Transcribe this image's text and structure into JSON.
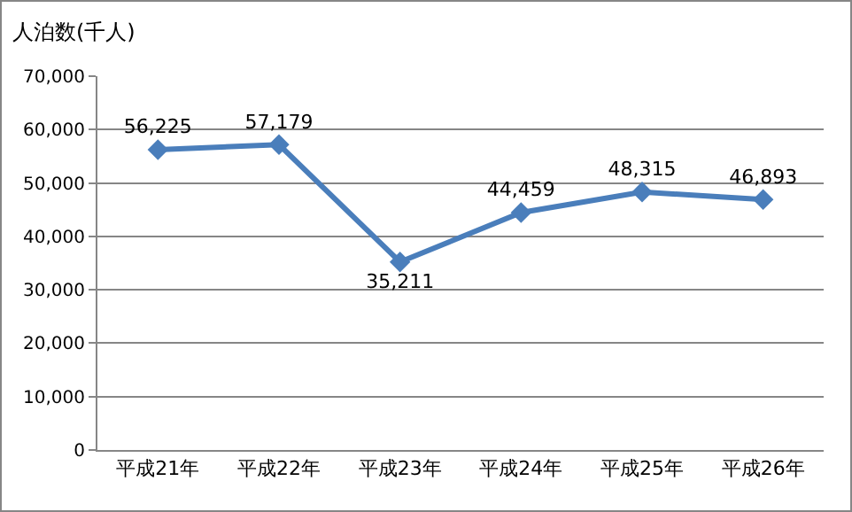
{
  "chart_data": {
    "type": "line",
    "ylabel": "人泊数(千人)",
    "categories": [
      "平成21年",
      "平成22年",
      "平成23年",
      "平成24年",
      "平成25年",
      "平成26年"
    ],
    "series": [
      {
        "color": "#4a7ebb",
        "values": [
          56225,
          57179,
          35211,
          44459,
          48315,
          46893
        ],
        "value_labels": [
          "56,225",
          "57,179",
          "35,211",
          "44,459",
          "48,315",
          "46,893"
        ]
      }
    ],
    "ylim": [
      0,
      70000
    ],
    "yticks": [
      {
        "value": 0,
        "label": "0"
      },
      {
        "value": 10000,
        "label": "10,000"
      },
      {
        "value": 20000,
        "label": "20,000"
      },
      {
        "value": 30000,
        "label": "30,000"
      },
      {
        "value": 40000,
        "label": "40,000"
      },
      {
        "value": 50000,
        "label": "50,000"
      },
      {
        "value": 60000,
        "label": "60,000"
      },
      {
        "value": 70000,
        "label": "70,000"
      }
    ],
    "grid": "y",
    "marker": "diamond",
    "line_style": "solid"
  }
}
